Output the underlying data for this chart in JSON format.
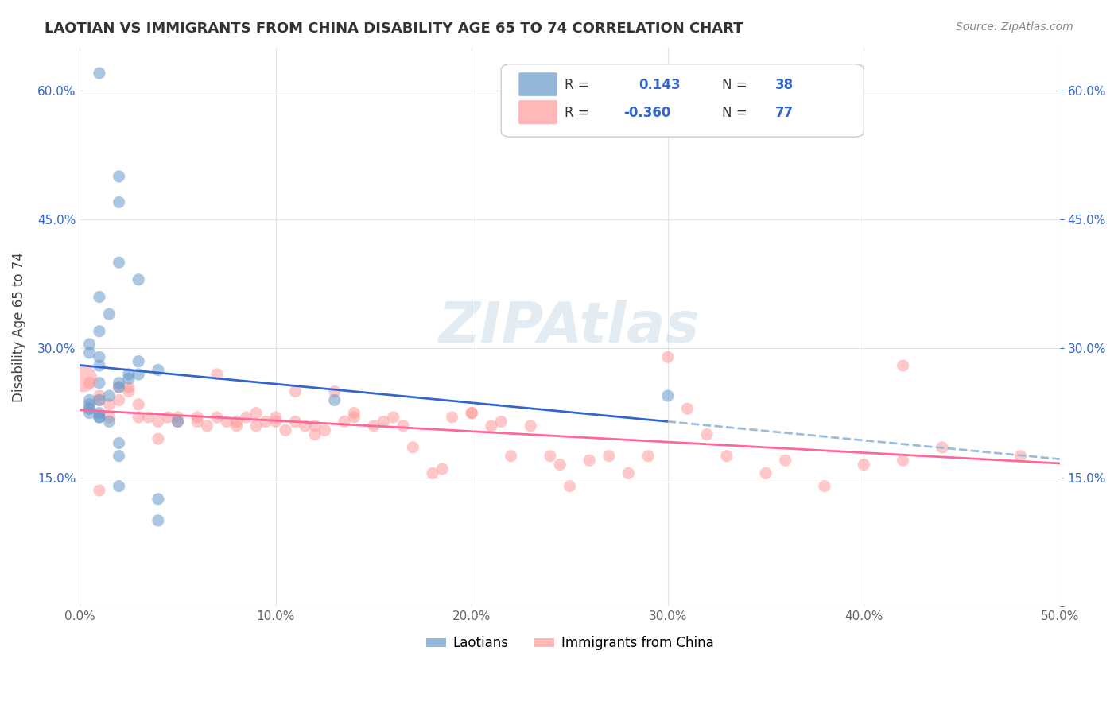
{
  "title": "LAOTIAN VS IMMIGRANTS FROM CHINA DISABILITY AGE 65 TO 74 CORRELATION CHART",
  "source": "Source: ZipAtlas.com",
  "xlabel_bottom": "",
  "ylabel": "Disability Age 65 to 74",
  "x_min": 0.0,
  "x_max": 0.5,
  "y_min": 0.0,
  "y_max": 0.65,
  "x_ticks": [
    0.0,
    0.1,
    0.2,
    0.3,
    0.4,
    0.5
  ],
  "x_tick_labels": [
    "0.0%",
    "10.0%",
    "20.0%",
    "30.0%",
    "40.0%",
    "50.0%"
  ],
  "y_ticks": [
    0.0,
    0.15,
    0.3,
    0.45,
    0.6
  ],
  "y_tick_labels": [
    "",
    "15.0%",
    "30.0%",
    "45.0%",
    "60.0%"
  ],
  "right_y_ticks": [
    0.0,
    0.15,
    0.3,
    0.45,
    0.6
  ],
  "right_y_tick_labels": [
    "",
    "15.0%",
    "30.0%",
    "45.0%",
    "60.0%"
  ],
  "legend_labels": [
    "Laotians",
    "Immigrants from China"
  ],
  "legend_R_blue": "R =   0.143",
  "legend_N_blue": "N = 38",
  "legend_R_pink": "R = -0.360",
  "legend_N_pink": "N = 77",
  "blue_color": "#6699CC",
  "pink_color": "#FF9999",
  "blue_line_color": "#3366CC",
  "pink_line_color": "#FF6699",
  "blue_dashed_color": "#99BBDD",
  "watermark_color": "#CCDDEE",
  "background_color": "#FFFFFF",
  "grid_color": "#DDDDDD",
  "laotian_x": [
    0.01,
    0.02,
    0.02,
    0.02,
    0.03,
    0.01,
    0.015,
    0.01,
    0.005,
    0.005,
    0.01,
    0.01,
    0.02,
    0.025,
    0.03,
    0.03,
    0.04,
    0.01,
    0.02,
    0.025,
    0.015,
    0.01,
    0.005,
    0.005,
    0.005,
    0.005,
    0.01,
    0.01,
    0.01,
    0.015,
    0.02,
    0.05,
    0.02,
    0.04,
    0.3,
    0.13,
    0.02,
    0.04
  ],
  "laotian_y": [
    0.62,
    0.5,
    0.47,
    0.4,
    0.38,
    0.36,
    0.34,
    0.32,
    0.305,
    0.295,
    0.29,
    0.28,
    0.26,
    0.27,
    0.285,
    0.27,
    0.275,
    0.26,
    0.255,
    0.265,
    0.245,
    0.24,
    0.24,
    0.235,
    0.23,
    0.225,
    0.225,
    0.22,
    0.22,
    0.215,
    0.19,
    0.215,
    0.175,
    0.125,
    0.245,
    0.24,
    0.14,
    0.1
  ],
  "china_x": [
    0.005,
    0.01,
    0.01,
    0.015,
    0.015,
    0.02,
    0.02,
    0.025,
    0.025,
    0.03,
    0.03,
    0.035,
    0.04,
    0.04,
    0.045,
    0.05,
    0.05,
    0.06,
    0.06,
    0.065,
    0.07,
    0.07,
    0.075,
    0.08,
    0.08,
    0.085,
    0.09,
    0.09,
    0.095,
    0.1,
    0.1,
    0.105,
    0.11,
    0.11,
    0.115,
    0.12,
    0.12,
    0.125,
    0.13,
    0.135,
    0.14,
    0.14,
    0.15,
    0.155,
    0.16,
    0.165,
    0.17,
    0.18,
    0.185,
    0.19,
    0.2,
    0.2,
    0.21,
    0.215,
    0.22,
    0.23,
    0.24,
    0.245,
    0.25,
    0.26,
    0.27,
    0.28,
    0.29,
    0.3,
    0.31,
    0.32,
    0.33,
    0.35,
    0.36,
    0.38,
    0.4,
    0.42,
    0.44,
    0.48,
    0.005,
    0.01,
    0.42
  ],
  "china_y": [
    0.26,
    0.24,
    0.245,
    0.235,
    0.22,
    0.24,
    0.255,
    0.255,
    0.25,
    0.235,
    0.22,
    0.22,
    0.215,
    0.195,
    0.22,
    0.22,
    0.215,
    0.22,
    0.215,
    0.21,
    0.27,
    0.22,
    0.215,
    0.215,
    0.21,
    0.22,
    0.225,
    0.21,
    0.215,
    0.22,
    0.215,
    0.205,
    0.25,
    0.215,
    0.21,
    0.21,
    0.2,
    0.205,
    0.25,
    0.215,
    0.225,
    0.22,
    0.21,
    0.215,
    0.22,
    0.21,
    0.185,
    0.155,
    0.16,
    0.22,
    0.225,
    0.225,
    0.21,
    0.215,
    0.175,
    0.21,
    0.175,
    0.165,
    0.14,
    0.17,
    0.175,
    0.155,
    0.175,
    0.29,
    0.23,
    0.2,
    0.175,
    0.155,
    0.17,
    0.14,
    0.165,
    0.17,
    0.185,
    0.175,
    0.23,
    0.135,
    0.28
  ]
}
